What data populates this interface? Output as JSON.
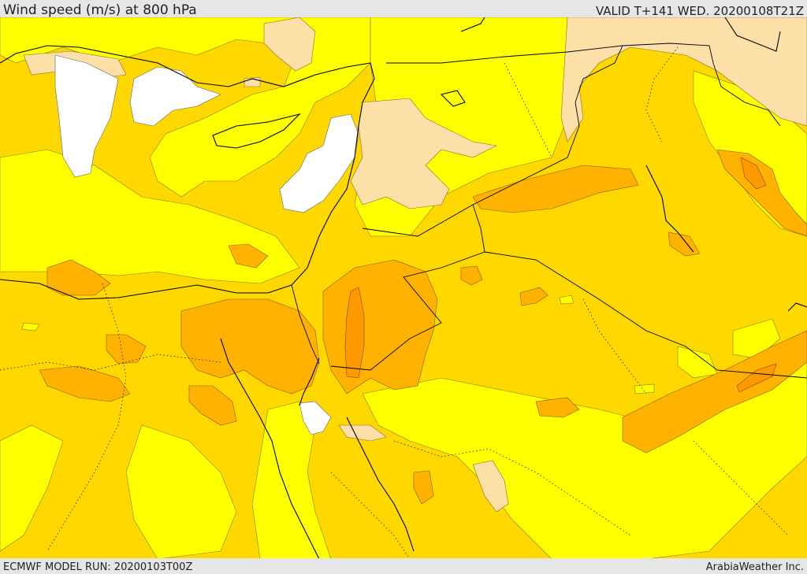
{
  "header": {
    "title": "Wind speed (m/s) at 800 hPa",
    "valid": "VALID T+141 WED. 20200108T21Z"
  },
  "footer": {
    "model_run": "ECMWF MODEL RUN: 20200103T00Z",
    "credit": "ArabiaWeather Inc."
  },
  "colors": {
    "below_5": "#ffffff",
    "band_5_10": "#ffff00",
    "band_10_15": "#ffd800",
    "band_15_20": "#ffb300",
    "band_20_25": "#ff9900",
    "low_tan": "#fde0a8",
    "coastline": "#000000",
    "border": "#000000"
  }
}
